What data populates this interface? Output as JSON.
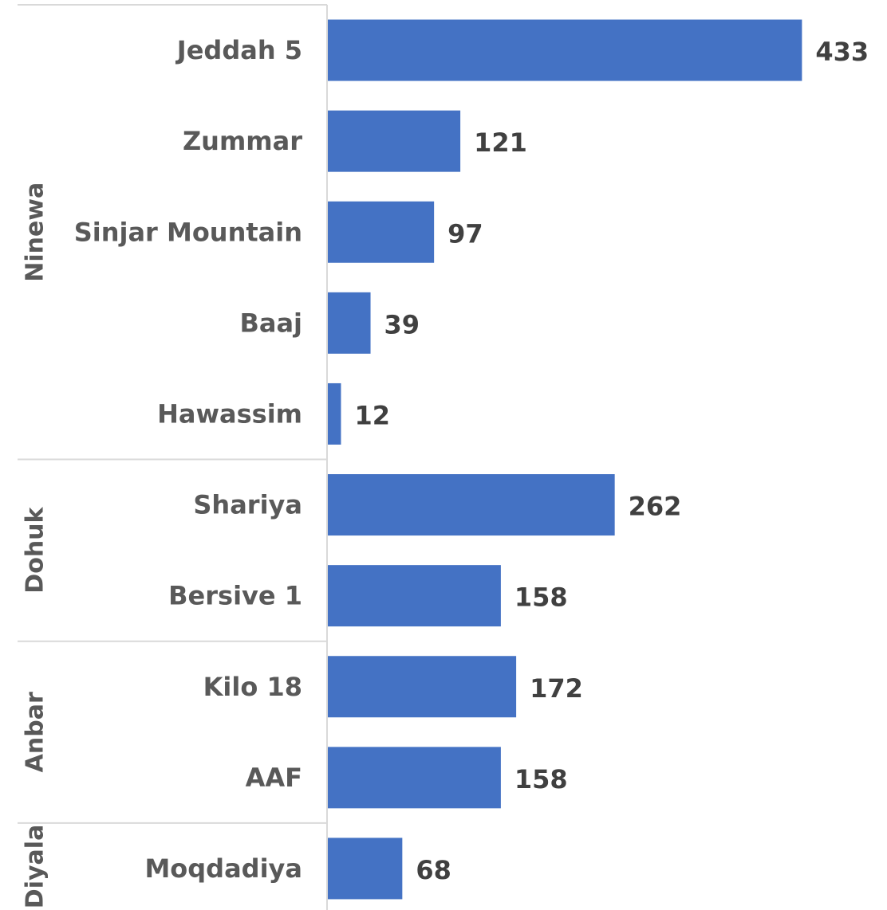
{
  "chart_data": {
    "type": "bar",
    "orientation": "horizontal",
    "title": "",
    "xlabel": "",
    "ylabel": "",
    "grid": false,
    "legend": "none",
    "bar_color": "#4472C4",
    "xlim": [
      0,
      440
    ],
    "groups": [
      {
        "name": "Ninewa",
        "categories": [
          "Jeddah 5",
          "Zummar",
          "Sinjar Mountain",
          "Baaj",
          "Hawassim"
        ],
        "values": [
          433,
          121,
          97,
          39,
          12
        ]
      },
      {
        "name": "Dohuk",
        "categories": [
          "Shariya",
          "Bersive 1"
        ],
        "values": [
          262,
          158
        ]
      },
      {
        "name": "Anbar",
        "categories": [
          "Kilo 18",
          "AAF"
        ],
        "values": [
          172,
          158
        ]
      },
      {
        "name": "Diyala",
        "categories": [
          "Moqdadiya"
        ],
        "values": [
          68
        ]
      }
    ]
  }
}
